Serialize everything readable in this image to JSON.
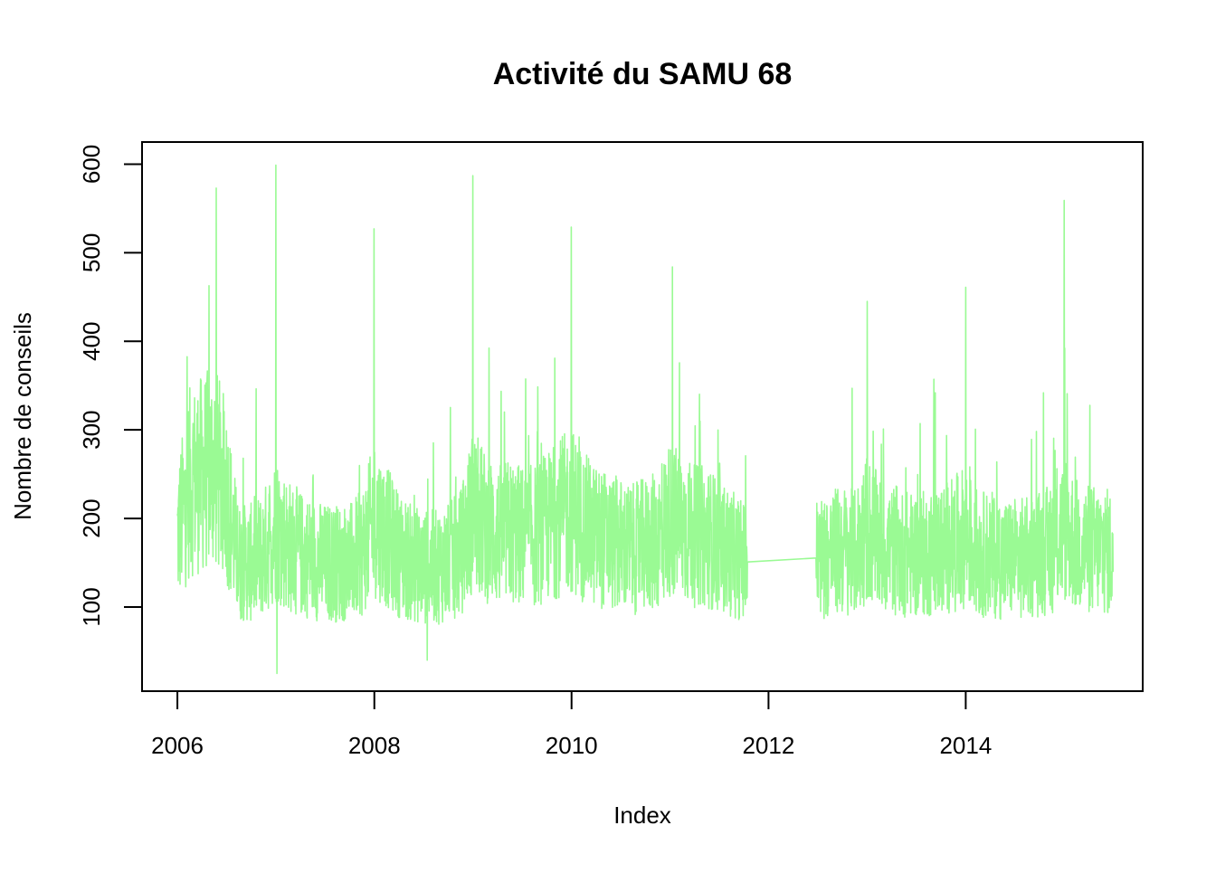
{
  "chart_data": {
    "type": "line",
    "title": "Activité du SAMU 68",
    "xlabel": "Index",
    "ylabel": "Nombre de conseils",
    "x_ticks": [
      "2006",
      "2008",
      "2010",
      "2012",
      "2014"
    ],
    "y_ticks": [
      "100",
      "200",
      "300",
      "400",
      "500",
      "600"
    ],
    "xlim": [
      "2005-08-23",
      "2015-10-19"
    ],
    "ylim": [
      5,
      625
    ],
    "line_color": "#9AFA94",
    "grid": false,
    "legend": "none",
    "series": [
      {
        "x": [
          "2006-01-01",
          "2006-02-15",
          "2006-04-01",
          "2006-05-20",
          "2006-07-01",
          "2006-08-15",
          "2006-10-01",
          "2006-11-15",
          "2007-01-01",
          "2007-02-15",
          "2007-04-01",
          "2007-05-15",
          "2007-07-01",
          "2007-08-15",
          "2007-10-01",
          "2007-11-15",
          "2008-01-01",
          "2008-02-15",
          "2008-04-01",
          "2008-05-15",
          "2008-07-01",
          "2008-08-15",
          "2008-10-01",
          "2008-11-15",
          "2009-01-01",
          "2009-02-15",
          "2009-04-01",
          "2009-05-15",
          "2009-07-01",
          "2009-08-15",
          "2009-10-01",
          "2009-11-15",
          "2010-01-01",
          "2010-02-15",
          "2010-04-01",
          "2010-05-15",
          "2010-07-01",
          "2010-08-15",
          "2010-10-01",
          "2010-11-15",
          "2011-01-01",
          "2011-02-15",
          "2011-04-01",
          "2011-05-15",
          "2011-07-01",
          "2011-08-15",
          "2011-10-15",
          "2012-07-01",
          "2012-08-15",
          "2012-10-01",
          "2012-11-15",
          "2013-01-01",
          "2013-02-15",
          "2013-04-01",
          "2013-05-15",
          "2013-07-01",
          "2013-08-15",
          "2013-10-01",
          "2013-11-15",
          "2014-01-01",
          "2014-02-15",
          "2014-04-01",
          "2014-05-15",
          "2014-07-01",
          "2014-08-15",
          "2014-10-01",
          "2014-11-15",
          "2015-01-01",
          "2015-02-15",
          "2015-04-01",
          "2015-05-15",
          "2015-07-01"
        ],
        "values": [
          180,
          240,
          250,
          260,
          230,
          150,
          150,
          160,
          190,
          170,
          160,
          155,
          150,
          150,
          150,
          160,
          200,
          180,
          160,
          150,
          145,
          145,
          150,
          160,
          210,
          190,
          180,
          185,
          180,
          180,
          190,
          200,
          210,
          190,
          180,
          175,
          170,
          165,
          170,
          175,
          200,
          190,
          180,
          180,
          170,
          160,
          150,
          155,
          160,
          165,
          160,
          190,
          170,
          165,
          160,
          160,
          160,
          165,
          170,
          180,
          160,
          160,
          155,
          155,
          155,
          160,
          165,
          190,
          170,
          165,
          165,
          160
        ],
        "peaks": [
          {
            "x": "2006-05-25",
            "y": 573
          },
          {
            "x": "2007-01-01",
            "y": 599
          },
          {
            "x": "2007-12-31",
            "y": 527
          },
          {
            "x": "2008-12-31",
            "y": 587
          },
          {
            "x": "2009-12-31",
            "y": 529
          },
          {
            "x": "2011-01-10",
            "y": 484
          },
          {
            "x": "2013-01-01",
            "y": 445
          },
          {
            "x": "2014-01-01",
            "y": 461
          },
          {
            "x": "2015-01-01",
            "y": 559
          }
        ],
        "troughs": [
          {
            "x": "2007-01-05",
            "y": 25
          },
          {
            "x": "2008-07-15",
            "y": 40
          }
        ],
        "gap": {
          "from": "2011-10-15",
          "to": "2012-06-25"
        }
      }
    ]
  }
}
